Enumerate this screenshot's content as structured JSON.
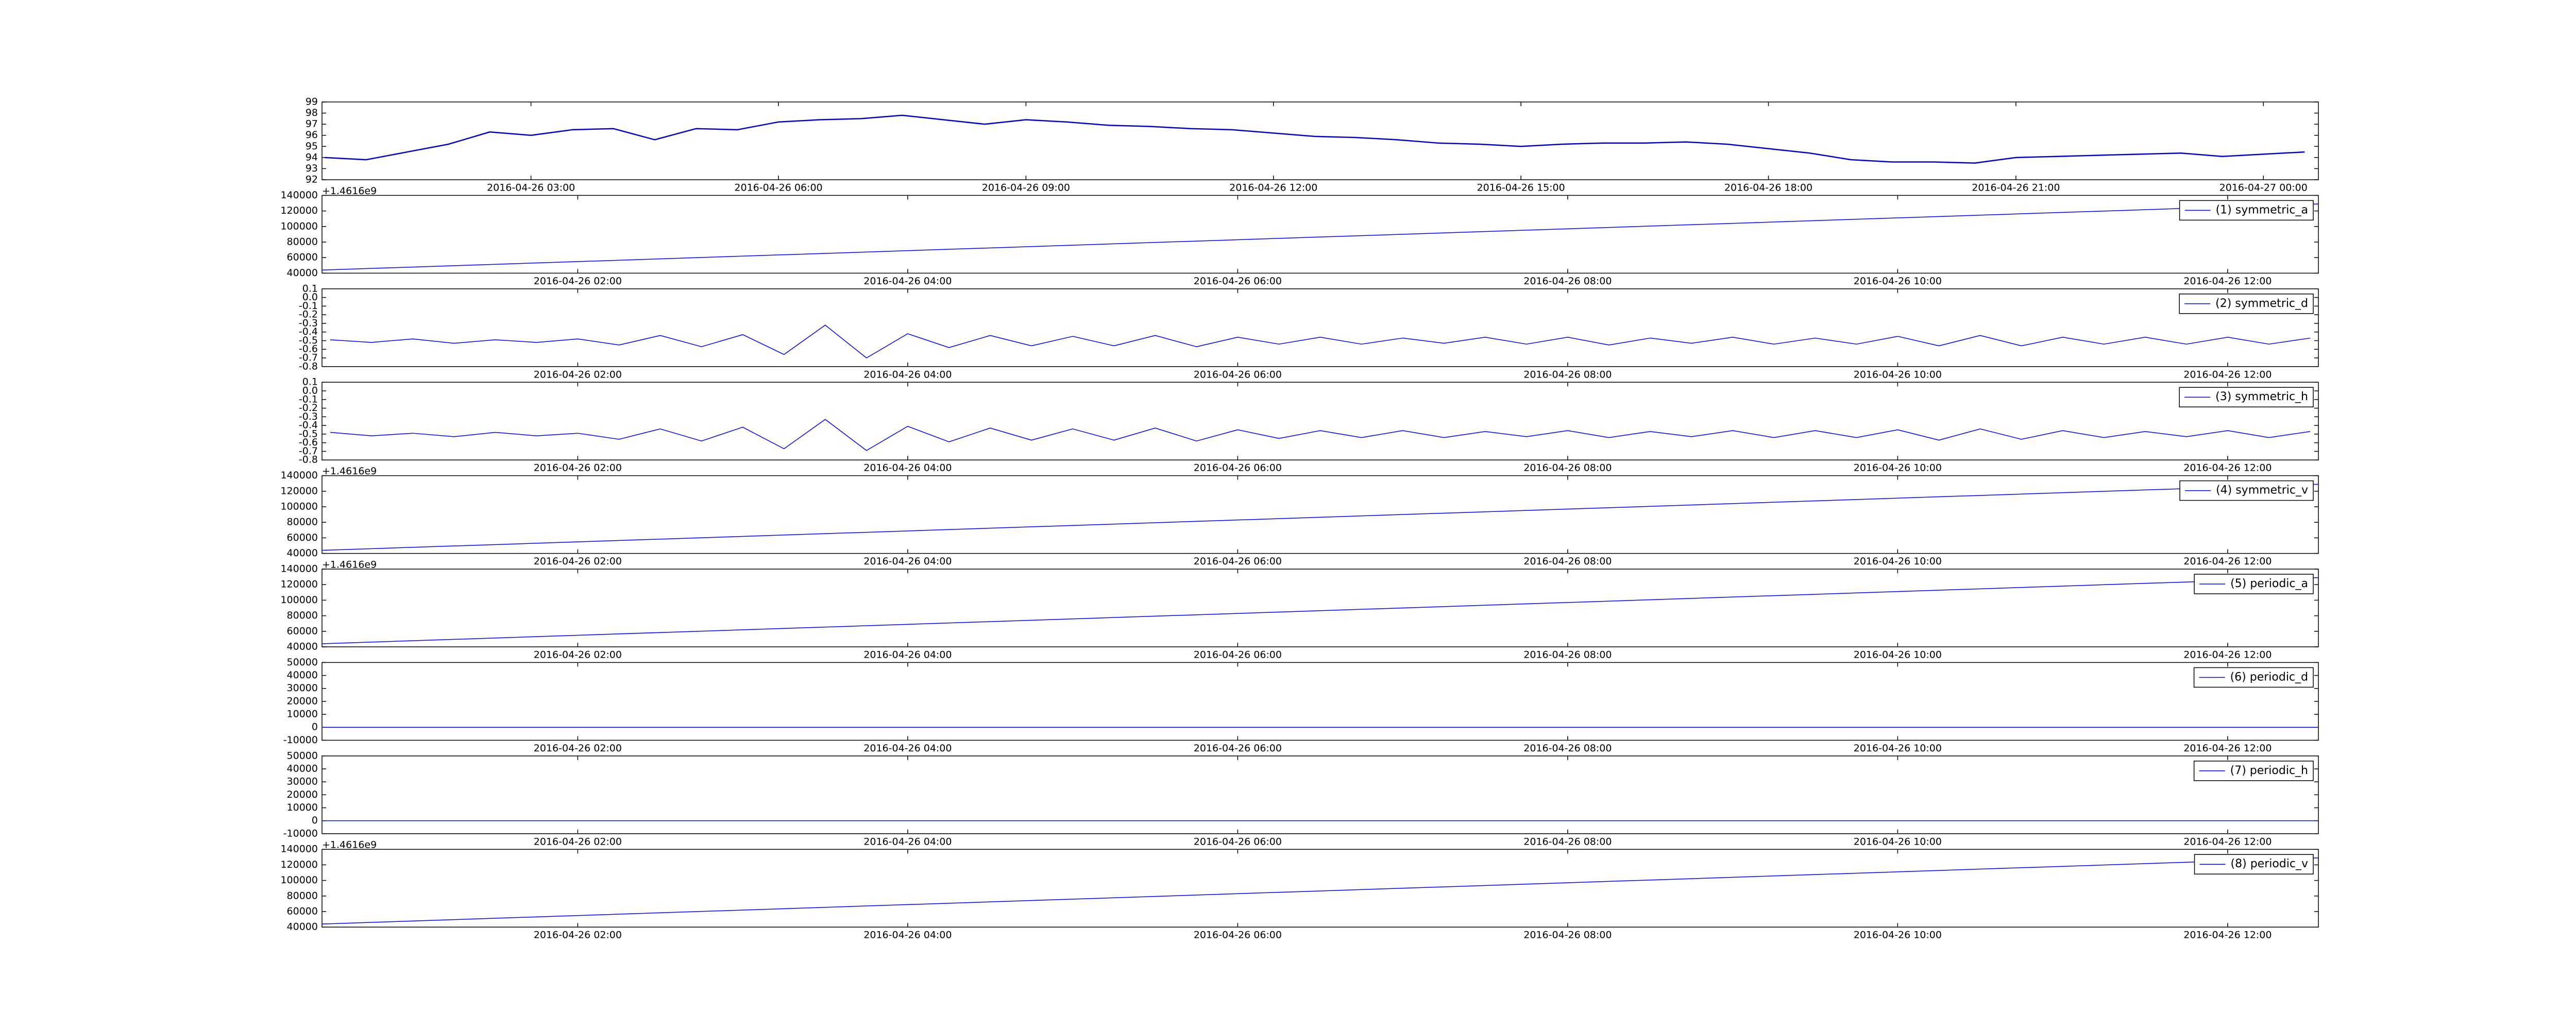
{
  "chart_data": [
    {
      "type": "line",
      "x": [
        "2016-04-26 00:30",
        "2016-04-26 01:00",
        "2016-04-26 01:30",
        "2016-04-26 02:00",
        "2016-04-26 02:30",
        "2016-04-26 03:00",
        "2016-04-26 03:30",
        "2016-04-26 04:00",
        "2016-04-26 04:30",
        "2016-04-26 05:00",
        "2016-04-26 05:30",
        "2016-04-26 06:00",
        "2016-04-26 06:30",
        "2016-04-26 07:00",
        "2016-04-26 07:30",
        "2016-04-26 08:00",
        "2016-04-26 08:30",
        "2016-04-26 09:00",
        "2016-04-26 09:30",
        "2016-04-26 10:00",
        "2016-04-26 10:30",
        "2016-04-26 11:00",
        "2016-04-26 11:30",
        "2016-04-26 12:00",
        "2016-04-26 12:30",
        "2016-04-26 13:00",
        "2016-04-26 13:30",
        "2016-04-26 14:00",
        "2016-04-26 14:30",
        "2016-04-26 15:00",
        "2016-04-26 15:30",
        "2016-04-26 16:00",
        "2016-04-26 16:30",
        "2016-04-26 17:00",
        "2016-04-26 17:30",
        "2016-04-26 18:00",
        "2016-04-26 18:30",
        "2016-04-26 19:00",
        "2016-04-26 19:30",
        "2016-04-26 20:00",
        "2016-04-26 20:30",
        "2016-04-26 21:00",
        "2016-04-26 21:30",
        "2016-04-26 22:00",
        "2016-04-26 22:30",
        "2016-04-26 23:00",
        "2016-04-26 23:30",
        "2016-04-27 00:00",
        "2016-04-27 00:30"
      ],
      "series": [
        {
          "color": "#0000cc",
          "values": [
            94.0,
            93.8,
            94.5,
            95.2,
            96.3,
            96.0,
            96.5,
            96.6,
            95.6,
            96.6,
            96.5,
            97.2,
            97.4,
            97.5,
            97.8,
            97.4,
            97.0,
            97.4,
            97.2,
            96.9,
            96.8,
            96.6,
            96.5,
            96.2,
            95.9,
            95.8,
            95.6,
            95.3,
            95.2,
            95.0,
            95.2,
            95.3,
            95.3,
            95.4,
            95.2,
            94.8,
            94.4,
            93.8,
            93.6,
            93.6,
            93.5,
            94.0,
            94.1,
            94.2,
            94.3,
            94.4,
            94.1,
            94.3,
            94.5
          ]
        }
      ],
      "xlim": [
        "2016-04-26 00:28",
        "2016-04-27 00:40"
      ],
      "xticks": [
        "2016-04-26 03:00",
        "2016-04-26 06:00",
        "2016-04-26 09:00",
        "2016-04-26 12:00",
        "2016-04-26 15:00",
        "2016-04-26 18:00",
        "2016-04-26 21:00",
        "2016-04-27 00:00"
      ],
      "ylim": [
        92,
        99
      ],
      "yticks": [
        92,
        93,
        94,
        95,
        96,
        97,
        98,
        99
      ]
    },
    {
      "type": "line",
      "offset_text": "+1.4616e9",
      "legend": "upper right",
      "x": [
        "2016-04-26 00:27",
        "2016-04-26 12:33"
      ],
      "series": [
        {
          "name": "(1) symmetric_a",
          "color": "#0000ff",
          "values": [
            44000,
            129000
          ]
        }
      ],
      "xlim": [
        "2016-04-26 00:27",
        "2016-04-26 12:33"
      ],
      "xticks": [
        "2016-04-26 02:00",
        "2016-04-26 04:00",
        "2016-04-26 06:00",
        "2016-04-26 08:00",
        "2016-04-26 10:00",
        "2016-04-26 12:00"
      ],
      "ylim": [
        40000,
        140000
      ],
      "yticks": [
        40000,
        60000,
        80000,
        100000,
        120000,
        140000
      ]
    },
    {
      "type": "line",
      "legend": "upper right",
      "x": [
        "2016-04-26 00:30",
        "2016-04-26 00:45",
        "2016-04-26 01:00",
        "2016-04-26 01:15",
        "2016-04-26 01:30",
        "2016-04-26 01:45",
        "2016-04-26 02:00",
        "2016-04-26 02:15",
        "2016-04-26 02:30",
        "2016-04-26 02:45",
        "2016-04-26 03:00",
        "2016-04-26 03:15",
        "2016-04-26 03:30",
        "2016-04-26 03:45",
        "2016-04-26 04:00",
        "2016-04-26 04:15",
        "2016-04-26 04:30",
        "2016-04-26 04:45",
        "2016-04-26 05:00",
        "2016-04-26 05:15",
        "2016-04-26 05:30",
        "2016-04-26 05:45",
        "2016-04-26 06:00",
        "2016-04-26 06:15",
        "2016-04-26 06:30",
        "2016-04-26 06:45",
        "2016-04-26 07:00",
        "2016-04-26 07:15",
        "2016-04-26 07:30",
        "2016-04-26 07:45",
        "2016-04-26 08:00",
        "2016-04-26 08:15",
        "2016-04-26 08:30",
        "2016-04-26 08:45",
        "2016-04-26 09:00",
        "2016-04-26 09:15",
        "2016-04-26 09:30",
        "2016-04-26 09:45",
        "2016-04-26 10:00",
        "2016-04-26 10:15",
        "2016-04-26 10:30",
        "2016-04-26 10:45",
        "2016-04-26 11:00",
        "2016-04-26 11:15",
        "2016-04-26 11:30",
        "2016-04-26 11:45",
        "2016-04-26 12:00",
        "2016-04-26 12:15",
        "2016-04-26 12:30"
      ],
      "series": [
        {
          "name": "(2) symmetric_d",
          "color": "#0000ff",
          "values": [
            -0.49,
            -0.52,
            -0.48,
            -0.53,
            -0.49,
            -0.52,
            -0.48,
            -0.55,
            -0.44,
            -0.57,
            -0.43,
            -0.66,
            -0.32,
            -0.7,
            -0.42,
            -0.58,
            -0.44,
            -0.56,
            -0.45,
            -0.56,
            -0.44,
            -0.57,
            -0.46,
            -0.54,
            -0.46,
            -0.54,
            -0.47,
            -0.53,
            -0.46,
            -0.54,
            -0.46,
            -0.55,
            -0.47,
            -0.53,
            -0.46,
            -0.54,
            -0.47,
            -0.54,
            -0.45,
            -0.56,
            -0.44,
            -0.56,
            -0.46,
            -0.54,
            -0.46,
            -0.54,
            -0.46,
            -0.54,
            -0.47
          ]
        }
      ],
      "xlim": [
        "2016-04-26 00:27",
        "2016-04-26 12:33"
      ],
      "xticks": [
        "2016-04-26 02:00",
        "2016-04-26 04:00",
        "2016-04-26 06:00",
        "2016-04-26 08:00",
        "2016-04-26 10:00",
        "2016-04-26 12:00"
      ],
      "ylim": [
        -0.8,
        0.1
      ],
      "yticks": [
        -0.8,
        -0.7,
        -0.6,
        -0.5,
        -0.4,
        -0.3,
        -0.2,
        -0.1,
        {
          "value": 0,
          "label": "0.0"
        },
        0.1
      ]
    },
    {
      "type": "line",
      "legend": "upper right",
      "x": [
        "2016-04-26 00:30",
        "2016-04-26 00:45",
        "2016-04-26 01:00",
        "2016-04-26 01:15",
        "2016-04-26 01:30",
        "2016-04-26 01:45",
        "2016-04-26 02:00",
        "2016-04-26 02:15",
        "2016-04-26 02:30",
        "2016-04-26 02:45",
        "2016-04-26 03:00",
        "2016-04-26 03:15",
        "2016-04-26 03:30",
        "2016-04-26 03:45",
        "2016-04-26 04:00",
        "2016-04-26 04:15",
        "2016-04-26 04:30",
        "2016-04-26 04:45",
        "2016-04-26 05:00",
        "2016-04-26 05:15",
        "2016-04-26 05:30",
        "2016-04-26 05:45",
        "2016-04-26 06:00",
        "2016-04-26 06:15",
        "2016-04-26 06:30",
        "2016-04-26 06:45",
        "2016-04-26 07:00",
        "2016-04-26 07:15",
        "2016-04-26 07:30",
        "2016-04-26 07:45",
        "2016-04-26 08:00",
        "2016-04-26 08:15",
        "2016-04-26 08:30",
        "2016-04-26 08:45",
        "2016-04-26 09:00",
        "2016-04-26 09:15",
        "2016-04-26 09:30",
        "2016-04-26 09:45",
        "2016-04-26 10:00",
        "2016-04-26 10:15",
        "2016-04-26 10:30",
        "2016-04-26 10:45",
        "2016-04-26 11:00",
        "2016-04-26 11:15",
        "2016-04-26 11:30",
        "2016-04-26 11:45",
        "2016-04-26 12:00",
        "2016-04-26 12:15",
        "2016-04-26 12:30"
      ],
      "series": [
        {
          "name": "(3) symmetric_h",
          "color": "#0000ff",
          "values": [
            -0.48,
            -0.52,
            -0.49,
            -0.53,
            -0.48,
            -0.52,
            -0.49,
            -0.56,
            -0.44,
            -0.58,
            -0.42,
            -0.67,
            -0.33,
            -0.69,
            -0.41,
            -0.59,
            -0.43,
            -0.57,
            -0.44,
            -0.57,
            -0.43,
            -0.58,
            -0.45,
            -0.55,
            -0.46,
            -0.54,
            -0.46,
            -0.54,
            -0.47,
            -0.53,
            -0.46,
            -0.54,
            -0.47,
            -0.53,
            -0.46,
            -0.54,
            -0.46,
            -0.54,
            -0.45,
            -0.57,
            -0.44,
            -0.56,
            -0.46,
            -0.54,
            -0.47,
            -0.53,
            -0.46,
            -0.54,
            -0.47
          ]
        }
      ],
      "xlim": [
        "2016-04-26 00:27",
        "2016-04-26 12:33"
      ],
      "xticks": [
        "2016-04-26 02:00",
        "2016-04-26 04:00",
        "2016-04-26 06:00",
        "2016-04-26 08:00",
        "2016-04-26 10:00",
        "2016-04-26 12:00"
      ],
      "ylim": [
        -0.8,
        0.1
      ],
      "yticks": [
        -0.8,
        -0.7,
        -0.6,
        -0.5,
        -0.4,
        -0.3,
        -0.2,
        -0.1,
        {
          "value": 0,
          "label": "0.0"
        },
        0.1
      ]
    },
    {
      "type": "line",
      "offset_text": "+1.4616e9",
      "legend": "upper right",
      "x": [
        "2016-04-26 00:27",
        "2016-04-26 12:33"
      ],
      "series": [
        {
          "name": "(4) symmetric_v",
          "color": "#0000ff",
          "values": [
            44000,
            129000
          ]
        }
      ],
      "xlim": [
        "2016-04-26 00:27",
        "2016-04-26 12:33"
      ],
      "xticks": [
        "2016-04-26 02:00",
        "2016-04-26 04:00",
        "2016-04-26 06:00",
        "2016-04-26 08:00",
        "2016-04-26 10:00",
        "2016-04-26 12:00"
      ],
      "ylim": [
        40000,
        140000
      ],
      "yticks": [
        40000,
        60000,
        80000,
        100000,
        120000,
        140000
      ]
    },
    {
      "type": "line",
      "offset_text": "+1.4616e9",
      "legend": "upper right",
      "x": [
        "2016-04-26 00:27",
        "2016-04-26 12:33"
      ],
      "series": [
        {
          "name": "(5) periodic_a",
          "color": "#0000ff",
          "values": [
            44000,
            129000
          ]
        }
      ],
      "xlim": [
        "2016-04-26 00:27",
        "2016-04-26 12:33"
      ],
      "xticks": [
        "2016-04-26 02:00",
        "2016-04-26 04:00",
        "2016-04-26 06:00",
        "2016-04-26 08:00",
        "2016-04-26 10:00",
        "2016-04-26 12:00"
      ],
      "ylim": [
        40000,
        140000
      ],
      "yticks": [
        40000,
        60000,
        80000,
        100000,
        120000,
        140000
      ]
    },
    {
      "type": "line",
      "legend": "upper right",
      "x": [
        "2016-04-26 00:27",
        "2016-04-26 12:33"
      ],
      "series": [
        {
          "name": "(6) periodic_d",
          "color": "#0000ff",
          "values": [
            0,
            0
          ]
        }
      ],
      "xlim": [
        "2016-04-26 00:27",
        "2016-04-26 12:33"
      ],
      "xticks": [
        "2016-04-26 02:00",
        "2016-04-26 04:00",
        "2016-04-26 06:00",
        "2016-04-26 08:00",
        "2016-04-26 10:00",
        "2016-04-26 12:00"
      ],
      "ylim": [
        -10000,
        50000
      ],
      "yticks": [
        -10000,
        0,
        10000,
        20000,
        30000,
        40000,
        50000
      ]
    },
    {
      "type": "line",
      "legend": "upper right",
      "x": [
        "2016-04-26 00:27",
        "2016-04-26 12:33"
      ],
      "series": [
        {
          "name": "(7) periodic_h",
          "color": "#0000ff",
          "values": [
            0,
            0
          ]
        }
      ],
      "xlim": [
        "2016-04-26 00:27",
        "2016-04-26 12:33"
      ],
      "xticks": [
        "2016-04-26 02:00",
        "2016-04-26 04:00",
        "2016-04-26 06:00",
        "2016-04-26 08:00",
        "2016-04-26 10:00",
        "2016-04-26 12:00"
      ],
      "ylim": [
        -10000,
        50000
      ],
      "yticks": [
        -10000,
        0,
        10000,
        20000,
        30000,
        40000,
        50000
      ]
    },
    {
      "type": "line",
      "offset_text": "+1.4616e9",
      "legend": "upper right",
      "x": [
        "2016-04-26 00:27",
        "2016-04-26 12:33"
      ],
      "series": [
        {
          "name": "(8) periodic_v",
          "color": "#0000ff",
          "values": [
            44000,
            129000
          ]
        }
      ],
      "xlim": [
        "2016-04-26 00:27",
        "2016-04-26 12:33"
      ],
      "xticks": [
        "2016-04-26 02:00",
        "2016-04-26 04:00",
        "2016-04-26 06:00",
        "2016-04-26 08:00",
        "2016-04-26 10:00",
        "2016-04-26 12:00"
      ],
      "ylim": [
        40000,
        140000
      ],
      "yticks": [
        40000,
        60000,
        80000,
        100000,
        120000,
        140000
      ]
    }
  ]
}
